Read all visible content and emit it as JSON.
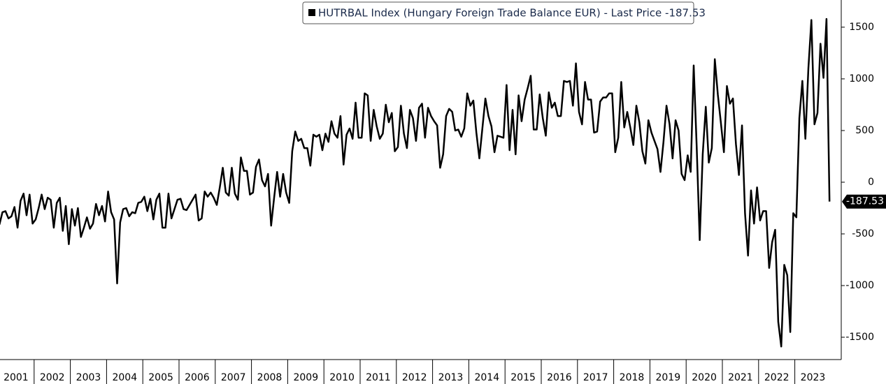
{
  "chart_data": {
    "type": "line",
    "series": [
      {
        "name": "HUTRBAL Index (Hungary Foreign Trade Balance EUR) - Last Price -187.53",
        "color": "#000000"
      }
    ],
    "categories": [
      "2001",
      "2002",
      "2003",
      "2004",
      "2005",
      "2006",
      "2007",
      "2008",
      "2009",
      "2010",
      "2011",
      "2012",
      "2013",
      "2014",
      "2015",
      "2016",
      "2017",
      "2018",
      "2019",
      "2020",
      "2021",
      "2022",
      "2023"
    ],
    "values": [
      [
        -410,
        -290,
        -280,
        -350,
        -330,
        -240,
        -440,
        -180,
        -110,
        -320,
        -120,
        -400
      ],
      [
        -360,
        -250,
        -120,
        -260,
        -150,
        -170,
        -440,
        -200,
        -150,
        -470,
        -230,
        -600
      ],
      [
        -260,
        -420,
        -250,
        -530,
        -440,
        -340,
        -450,
        -400,
        -210,
        -320,
        -230,
        -380
      ],
      [
        -90,
        -290,
        -360,
        -980,
        -390,
        -260,
        -250,
        -330,
        -290,
        -300,
        -200,
        -190
      ],
      [
        -140,
        -280,
        -160,
        -360,
        -170,
        -110,
        -440,
        -440,
        -110,
        -350,
        -260,
        -170
      ],
      [
        -160,
        -260,
        -270,
        -220,
        -170,
        -120,
        -370,
        -350,
        -90,
        -140,
        -100,
        -150
      ],
      [
        -220,
        -50,
        140,
        -100,
        -130,
        140,
        -110,
        -170,
        240,
        110,
        110,
        -120
      ],
      [
        -100,
        150,
        220,
        20,
        -40,
        80,
        -420,
        -150,
        100,
        -140,
        80,
        -100
      ],
      [
        -200,
        300,
        490,
        400,
        420,
        330,
        330,
        160,
        460,
        440,
        460,
        310
      ],
      [
        470,
        390,
        590,
        470,
        430,
        640,
        170,
        460,
        520,
        420,
        770,
        430
      ],
      [
        430,
        860,
        840,
        400,
        700,
        540,
        420,
        470,
        750,
        580,
        670,
        300
      ],
      [
        340,
        740,
        470,
        330,
        700,
        620,
        400,
        720,
        760,
        430,
        720,
        640
      ],
      [
        590,
        550,
        140,
        270,
        640,
        710,
        680,
        500,
        510,
        440,
        520,
        860
      ],
      [
        740,
        790,
        480,
        230,
        520,
        810,
        640,
        540,
        290,
        450,
        440,
        430
      ],
      [
        940,
        310,
        700,
        270,
        840,
        590,
        800,
        910,
        1030,
        510,
        510,
        850
      ],
      [
        620,
        450,
        870,
        720,
        770,
        640,
        640,
        980,
        970,
        980,
        740,
        1150
      ],
      [
        680,
        560,
        970,
        800,
        800,
        480,
        490,
        780,
        820,
        820,
        860,
        860
      ],
      [
        290,
        430,
        970,
        530,
        680,
        530,
        360,
        740,
        580,
        300,
        180,
        600
      ],
      [
        480,
        400,
        320,
        100,
        390,
        740,
        560,
        230,
        600,
        500,
        80,
        20
      ],
      [
        260,
        100,
        1130,
        340,
        -560,
        270,
        730,
        190,
        330,
        1190,
        850,
        580
      ],
      [
        290,
        930,
        760,
        810,
        370,
        70,
        550,
        -300,
        -710,
        -80,
        -400,
        -50
      ],
      [
        -370,
        -280,
        -280,
        -830,
        -580,
        -460,
        -1350,
        -1590,
        -800,
        -900,
        -1450,
        -300
      ],
      [
        -340,
        620,
        980,
        420,
        1100,
        1570,
        560,
        670,
        1340,
        1010,
        1580,
        -187.53
      ]
    ],
    "ylim": [
      -1716,
      1763
    ],
    "yticks": [
      1500,
      1000,
      500,
      0,
      -500,
      -1000,
      -1500
    ]
  }
}
